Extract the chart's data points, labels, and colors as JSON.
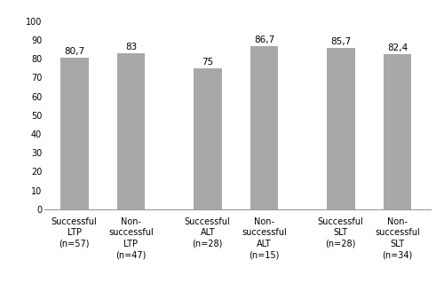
{
  "categories": [
    "Successful\nLTP\n(n=57)",
    "Non-\nsuccessful\nLTP\n(n=47)",
    "Successful\nALT\n(n=28)",
    "Non-\nsuccessful\nALT\n(n=15)",
    "Successful\nSLT\n(n=28)",
    "Non-\nsuccessful\nSLT\n(n=34)"
  ],
  "values": [
    80.7,
    83,
    75,
    86.7,
    85.7,
    82.4
  ],
  "labels": [
    "80,7",
    "83",
    "75",
    "86,7",
    "85,7",
    "82,4"
  ],
  "bar_color": "#a8a8a8",
  "ylim": [
    0,
    100
  ],
  "yticks": [
    0,
    10,
    20,
    30,
    40,
    50,
    60,
    70,
    80,
    90,
    100
  ],
  "bar_width": 0.42,
  "label_fontsize": 7.5,
  "tick_fontsize": 7,
  "background_color": "#ffffff",
  "x_positions": [
    0,
    0.85,
    2.0,
    2.85,
    4.0,
    4.85
  ]
}
